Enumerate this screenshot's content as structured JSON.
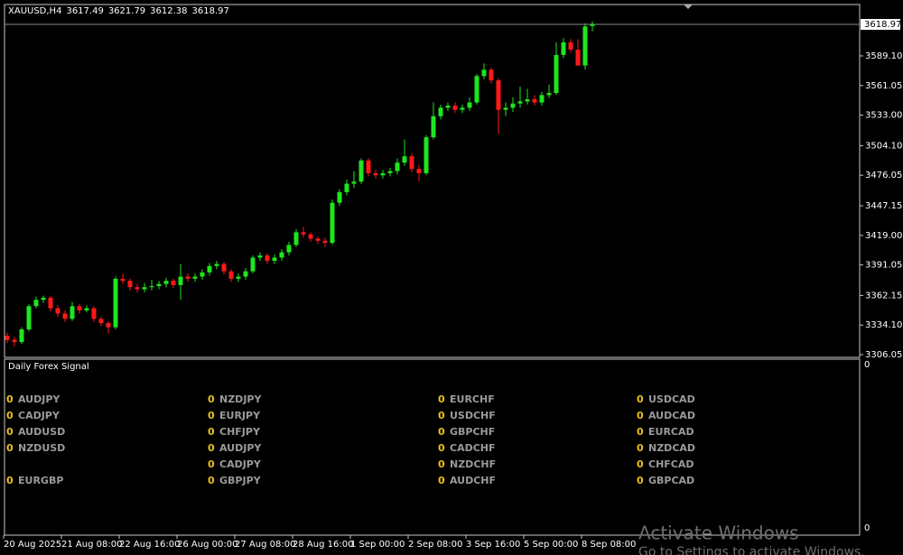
{
  "chart_data": {
    "type": "candlestick",
    "symbol": "XAUUSD,H4",
    "colors": {
      "up": "#1ee61e",
      "down": "#ff1a1a"
    },
    "ylim": [
      3303.5,
      3637.8
    ],
    "yticks": [
      3306.05,
      3334.1,
      3362.15,
      3391.05,
      3419,
      3447.15,
      3476.05,
      3504.1,
      3533,
      3561.05,
      3589.1
    ],
    "ytick_labels": [
      "3306.05",
      "3334.10",
      "3362.15",
      "3391.05",
      "3419.00",
      "3447.15",
      "3476.05",
      "3504.10",
      "3533.00",
      "3561.05",
      "3589.10"
    ],
    "categories": [
      "20 Aug 2025",
      null,
      null,
      null,
      null,
      null,
      null,
      null,
      "21 Aug 08:00",
      null,
      null,
      null,
      null,
      null,
      null,
      null,
      "22 Aug 16:00",
      null,
      null,
      null,
      null,
      null,
      null,
      null,
      "26 Aug 00:00",
      null,
      null,
      null,
      null,
      null,
      null,
      null,
      "27 Aug 08:00",
      null,
      null,
      null,
      null,
      null,
      null,
      null,
      "28 Aug 16:00",
      null,
      null,
      null,
      null,
      null,
      null,
      null,
      "1 Sep 00:00",
      null,
      null,
      null,
      null,
      null,
      null,
      null,
      "2 Sep 08:00",
      null,
      null,
      null,
      null,
      null,
      null,
      null,
      "3 Sep 16:00",
      null,
      null,
      null,
      null,
      null,
      null,
      null,
      "5 Sep 00:00",
      null,
      null,
      null,
      null,
      null,
      null,
      null,
      "8 Sep 08:00",
      null
    ],
    "open": [
      3324,
      3320,
      3318,
      3330,
      3352,
      3358,
      3360,
      3350,
      3345,
      3340,
      3352,
      3348,
      3350,
      3340,
      3336,
      3332,
      3378,
      3376,
      3370,
      3368,
      3370,
      3371,
      3373,
      3376,
      3372,
      3380,
      3378,
      3380,
      3384,
      3390,
      3392,
      3385,
      3378,
      3380,
      3385,
      3398,
      3400,
      3395,
      3398,
      3403,
      3410,
      3422,
      3420,
      3416,
      3414,
      3412,
      3450,
      3460,
      3468,
      3470,
      3490,
      3478,
      3476,
      3478,
      3480,
      3488,
      3494,
      3482,
      3478,
      3512,
      3532,
      3540,
      3542,
      3538,
      3540,
      3545,
      3570,
      3576,
      3566,
      3538,
      3540,
      3544,
      3546,
      3548,
      3545,
      3552,
      3554,
      3590,
      3602,
      3595,
      3580,
      3617.49
    ],
    "high": [
      3327,
      3323,
      3332,
      3354,
      3361,
      3362,
      3362,
      3353,
      3348,
      3356,
      3354,
      3353,
      3352,
      3342,
      3338,
      3380,
      3383,
      3378,
      3373,
      3374,
      3377,
      3376,
      3379,
      3378,
      3392,
      3383,
      3383,
      3387,
      3393,
      3395,
      3394,
      3387,
      3383,
      3388,
      3400,
      3403,
      3402,
      3401,
      3406,
      3413,
      3425,
      3427,
      3422,
      3418,
      3417,
      3453,
      3463,
      3472,
      3480,
      3492,
      3492,
      3481,
      3481,
      3483,
      3492,
      3510,
      3497,
      3486,
      3514,
      3545,
      3543,
      3545,
      3545,
      3543,
      3550,
      3572,
      3582,
      3578,
      3568,
      3545,
      3550,
      3560,
      3558,
      3552,
      3555,
      3562,
      3602,
      3606,
      3605,
      3605,
      3620,
      3621.79
    ],
    "low": [
      3317,
      3314,
      3316,
      3328,
      3350,
      3355,
      3347,
      3342,
      3337,
      3338,
      3345,
      3346,
      3337,
      3333,
      3326,
      3330,
      3373,
      3367,
      3365,
      3365,
      3367,
      3368,
      3370,
      3369,
      3358,
      3375,
      3375,
      3377,
      3381,
      3387,
      3382,
      3375,
      3375,
      3377,
      3383,
      3395,
      3392,
      3392,
      3395,
      3400,
      3408,
      3417,
      3413,
      3411,
      3408,
      3410,
      3447,
      3457,
      3464,
      3468,
      3475,
      3473,
      3473,
      3475,
      3477,
      3485,
      3479,
      3470,
      3476,
      3510,
      3529,
      3537,
      3535,
      3535,
      3537,
      3543,
      3567,
      3563,
      3515,
      3532,
      3536,
      3540,
      3543,
      3542,
      3542,
      3549,
      3552,
      3587,
      3592,
      3580,
      3576,
      3612.38
    ],
    "close": [
      3320,
      3318,
      3330,
      3352,
      3358,
      3360,
      3350,
      3345,
      3340,
      3352,
      3348,
      3350,
      3340,
      3336,
      3332,
      3378,
      3376,
      3370,
      3368,
      3370,
      3371,
      3373,
      3376,
      3372,
      3380,
      3378,
      3380,
      3384,
      3390,
      3392,
      3385,
      3378,
      3380,
      3385,
      3398,
      3400,
      3395,
      3398,
      3403,
      3410,
      3422,
      3420,
      3416,
      3414,
      3412,
      3450,
      3460,
      3468,
      3470,
      3490,
      3478,
      3476,
      3478,
      3480,
      3488,
      3494,
      3482,
      3478,
      3512,
      3532,
      3540,
      3542,
      3538,
      3540,
      3545,
      3570,
      3576,
      3566,
      3538,
      3540,
      3544,
      3546,
      3548,
      3545,
      3552,
      3554,
      3590,
      3602,
      3595,
      3580,
      3617,
      3618.97
    ],
    "close_label": "3618.97"
  },
  "indicator": {
    "title": "Daily Forex Signal",
    "axis_labels": [
      "0",
      "0"
    ],
    "columns": [
      [
        {
          "value": 0,
          "pair": "AUDJPY"
        },
        {
          "value": 0,
          "pair": "CADJPY"
        },
        {
          "value": 0,
          "pair": "AUDUSD"
        },
        {
          "value": 0,
          "pair": "NZDUSD"
        },
        null,
        {
          "value": 0,
          "pair": "EURGBP"
        }
      ],
      [
        {
          "value": 0,
          "pair": "NZDJPY"
        },
        {
          "value": 0,
          "pair": "EURJPY"
        },
        {
          "value": 0,
          "pair": "CHFJPY"
        },
        {
          "value": 0,
          "pair": "AUDJPY"
        },
        {
          "value": 0,
          "pair": "CADJPY"
        },
        {
          "value": 0,
          "pair": "GBPJPY"
        }
      ],
      [
        {
          "value": 0,
          "pair": "EURCHF"
        },
        {
          "value": 0,
          "pair": "USDCHF"
        },
        {
          "value": 0,
          "pair": "GBPCHF"
        },
        {
          "value": 0,
          "pair": "CADCHF"
        },
        {
          "value": 0,
          "pair": "NZDCHF"
        },
        {
          "value": 0,
          "pair": "AUDCHF"
        }
      ],
      [
        {
          "value": 0,
          "pair": "USDCAD"
        },
        {
          "value": 0,
          "pair": "AUDCAD"
        },
        {
          "value": 0,
          "pair": "EURCAD"
        },
        {
          "value": 0,
          "pair": "NZDCAD"
        },
        {
          "value": 0,
          "pair": "CHFCAD"
        },
        {
          "value": 0,
          "pair": "GBPCAD"
        }
      ]
    ]
  },
  "watermark": {
    "title": "Activate Windows",
    "subtitle": "Go to Settings to activate Windows."
  }
}
